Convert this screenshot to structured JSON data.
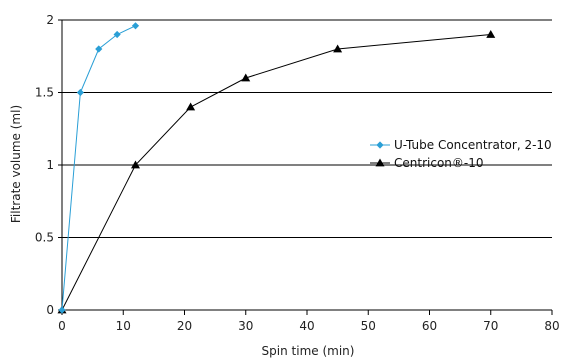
{
  "chart_data": {
    "type": "line",
    "title": "",
    "xlabel": "Spin time (min)",
    "ylabel": "Filtrate volume (ml)",
    "xlim": [
      0,
      80
    ],
    "ylim": [
      0,
      2
    ],
    "x_ticks": [
      "0",
      "10",
      "20",
      "30",
      "40",
      "50",
      "60",
      "70",
      "80"
    ],
    "y_ticks": [
      "0",
      "0.5",
      "1",
      "1.5",
      "2"
    ],
    "grid": "horizontal",
    "legend_position": "right",
    "series": [
      {
        "name": "U-Tube Concentrator, 2-10",
        "color": "#2a9fd6",
        "marker": "diamond",
        "x": [
          0,
          3,
          6,
          9,
          12
        ],
        "y": [
          0,
          1.5,
          1.8,
          1.9,
          1.96
        ]
      },
      {
        "name": "Centricon®-10",
        "color": "#000000",
        "marker": "triangle",
        "x": [
          0,
          12,
          21,
          30,
          45,
          70
        ],
        "y": [
          0,
          1.0,
          1.4,
          1.6,
          1.8,
          1.9
        ]
      }
    ]
  }
}
